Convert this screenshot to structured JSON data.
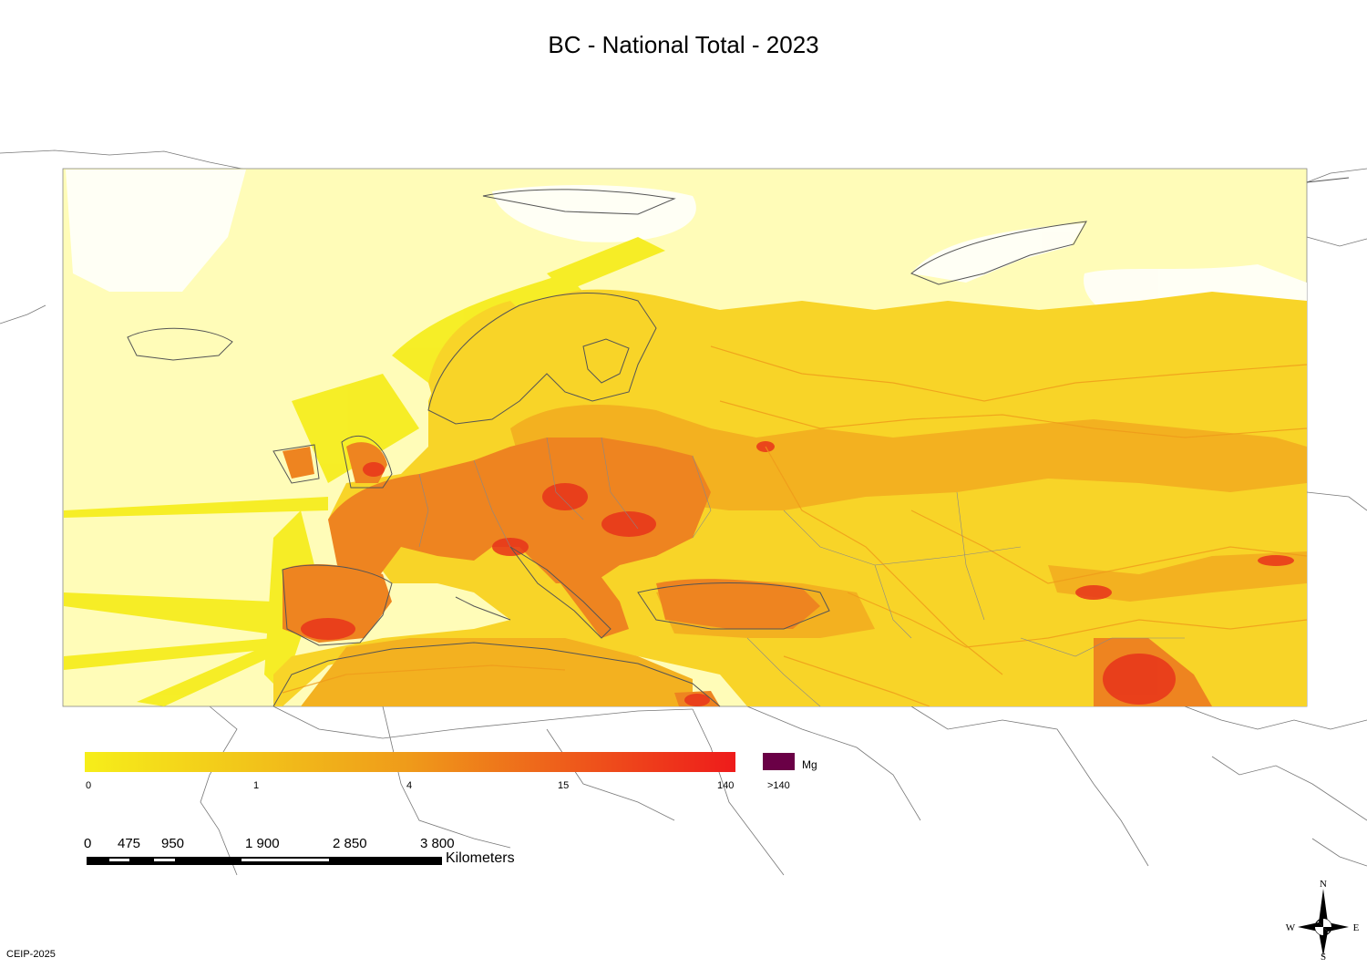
{
  "title": "BC - National Total - 2023",
  "legend": {
    "ticks": [
      "0",
      "1",
      "4",
      "15",
      "140"
    ],
    "over_label": ">140",
    "unit": "Mg",
    "colors": [
      "#f6ee1a",
      "#f2c51a",
      "#ef9a1a",
      "#ee5a1b",
      "#ee1b1b"
    ],
    "over_color": "#6a0046"
  },
  "scale": {
    "labels": [
      "0",
      "475",
      "950",
      "1 900",
      "2 850",
      "3 800"
    ],
    "units": "Kilometers"
  },
  "compass": {
    "n": "N",
    "s": "S",
    "e": "E",
    "w": "W"
  },
  "credit": "CEIP-2025",
  "colors": {
    "background_grid": "#fffbb3",
    "low": "#f7ea2a",
    "mid": "#f3b423",
    "high": "#ef7a1f",
    "hot": "#e8341b",
    "coast": "#555555"
  }
}
